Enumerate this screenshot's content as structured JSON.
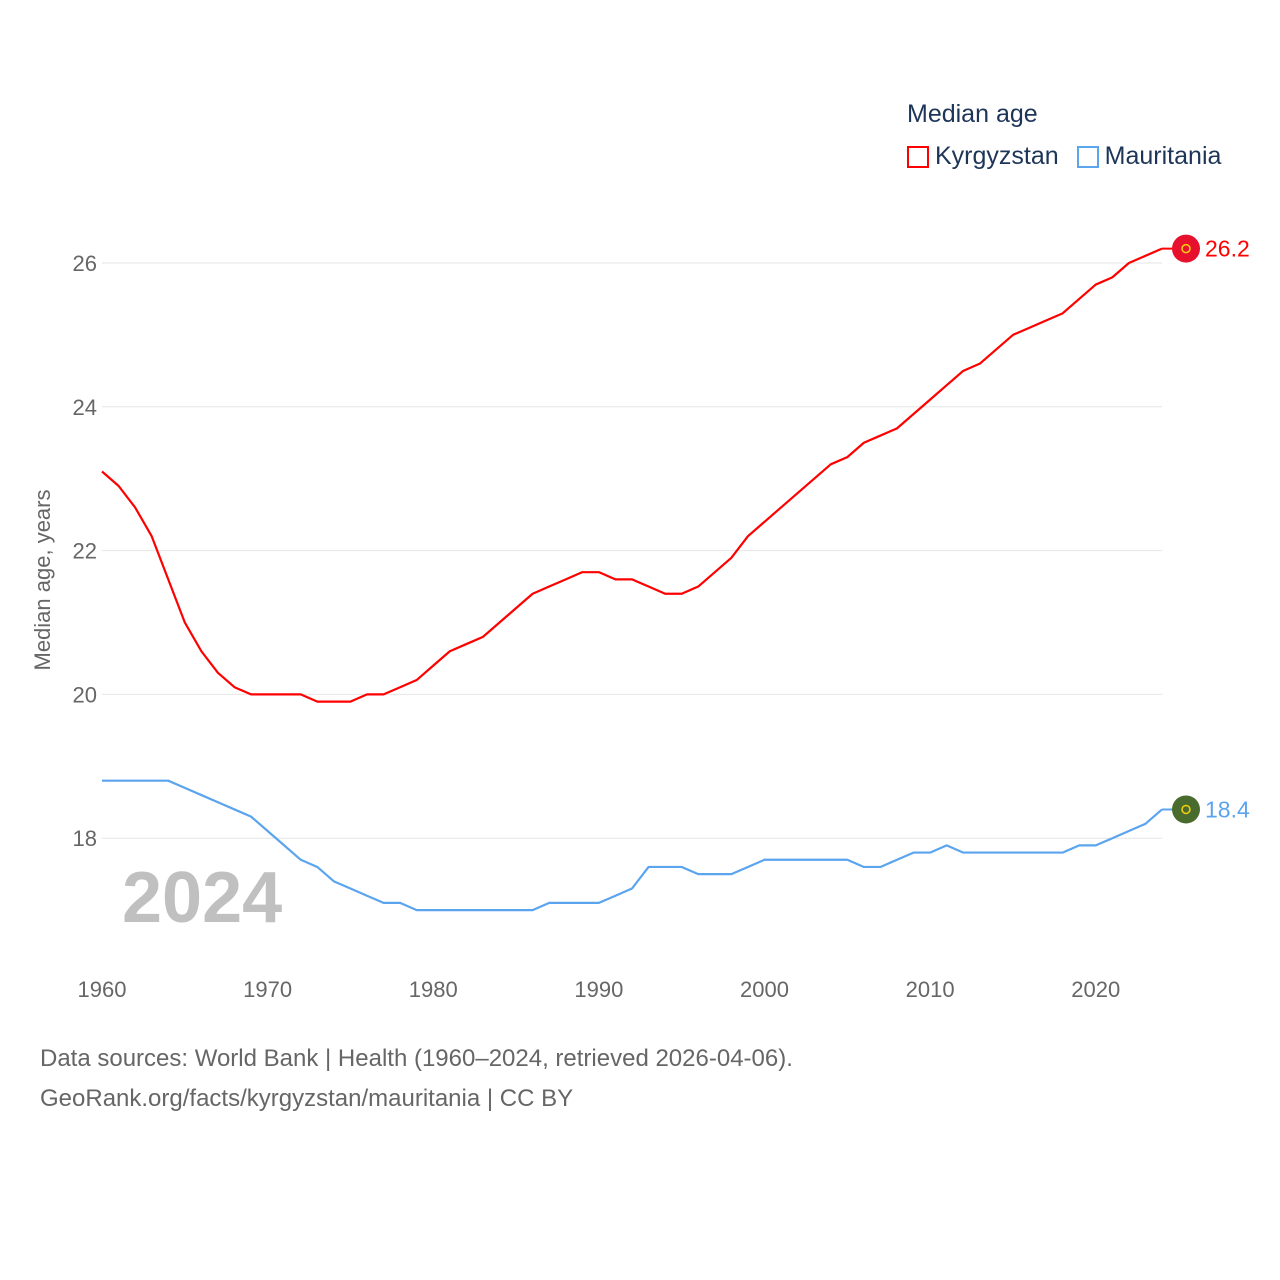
{
  "chart_data": {
    "type": "line",
    "title": "Median age",
    "ylabel": "Median age, years",
    "xlabel": "",
    "xlim": [
      1960,
      2024
    ],
    "ylim": [
      17,
      26.2
    ],
    "yticks": [
      18,
      20,
      22,
      24,
      26
    ],
    "xticks": [
      1960,
      1970,
      1980,
      1990,
      2000,
      2010,
      2020
    ],
    "grid": true,
    "legend_placement": "top-right",
    "year_label": "2024",
    "series": [
      {
        "name": "Kyrgyzstan",
        "color": "#ff0000",
        "end_label": "26.2",
        "flag_color": "#e8112d",
        "values": [
          23.1,
          22.9,
          22.6,
          22.2,
          21.6,
          21.0,
          20.6,
          20.3,
          20.1,
          20.0,
          20.0,
          20.0,
          20.0,
          19.9,
          19.9,
          19.9,
          20.0,
          20.0,
          20.1,
          20.2,
          20.4,
          20.6,
          20.7,
          20.8,
          21.0,
          21.2,
          21.4,
          21.5,
          21.6,
          21.7,
          21.7,
          21.6,
          21.6,
          21.5,
          21.4,
          21.4,
          21.5,
          21.7,
          21.9,
          22.2,
          22.4,
          22.6,
          22.8,
          23.0,
          23.2,
          23.3,
          23.5,
          23.6,
          23.7,
          23.9,
          24.1,
          24.3,
          24.5,
          24.6,
          24.8,
          25.0,
          25.1,
          25.2,
          25.3,
          25.5,
          25.7,
          25.8,
          26.0,
          26.1,
          26.2
        ]
      },
      {
        "name": "Mauritania",
        "color": "#5ba4ee",
        "end_label": "18.4",
        "flag_color": "#496b2e",
        "values": [
          18.8,
          18.8,
          18.8,
          18.8,
          18.8,
          18.7,
          18.6,
          18.5,
          18.4,
          18.3,
          18.1,
          17.9,
          17.7,
          17.6,
          17.4,
          17.3,
          17.2,
          17.1,
          17.1,
          17.0,
          17.0,
          17.0,
          17.0,
          17.0,
          17.0,
          17.0,
          17.0,
          17.1,
          17.1,
          17.1,
          17.1,
          17.2,
          17.3,
          17.6,
          17.6,
          17.6,
          17.5,
          17.5,
          17.5,
          17.6,
          17.7,
          17.7,
          17.7,
          17.7,
          17.7,
          17.7,
          17.6,
          17.6,
          17.7,
          17.8,
          17.8,
          17.9,
          17.8,
          17.8,
          17.8,
          17.8,
          17.8,
          17.8,
          17.8,
          17.9,
          17.9,
          18.0,
          18.1,
          18.2,
          18.4
        ]
      }
    ]
  },
  "legend": {
    "title": "Median age",
    "items": [
      "Kyrgyzstan",
      "Mauritania"
    ]
  },
  "source": {
    "line1": "Data sources: World Bank | Health (1960–2024, retrieved 2026-04-06).",
    "line2": "GeoRank.org/facts/kyrgyzstan/mauritania | CC BY"
  }
}
